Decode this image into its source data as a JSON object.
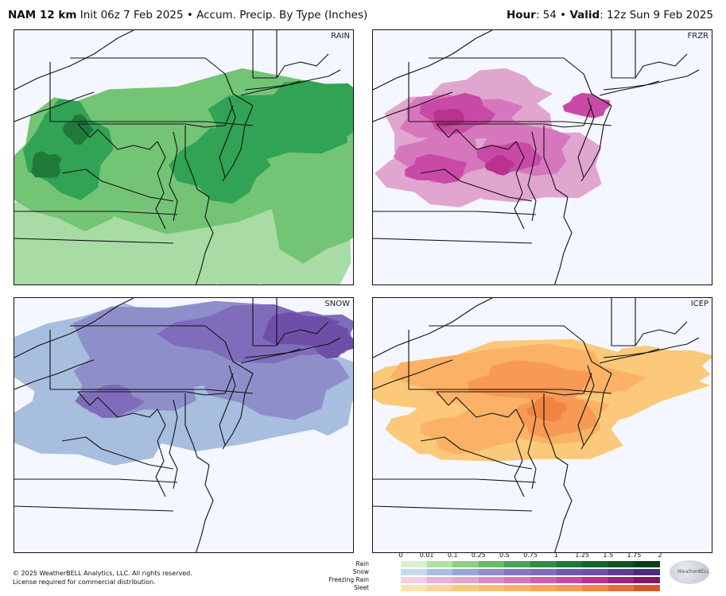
{
  "header": {
    "model": "NAM 12 km",
    "init": "Init 06z 7 Feb 2025",
    "sep": "•",
    "product": "Accum. Precip. By Type (Inches)",
    "hour_label": "Hour",
    "hour_value": ": 54",
    "valid_label": "Valid",
    "valid_value": ": 12z Sun 9 Feb 2025"
  },
  "panels": [
    {
      "label": "RAIN",
      "colors": {
        "light": "#a8dca4",
        "mid": "#74c476",
        "dark": "#31a354",
        "darkest": "#1f7a3a"
      }
    },
    {
      "label": "FRZR",
      "colors": {
        "light": "#e0a6cf",
        "mid": "#d677bd",
        "dark": "#c94aa6",
        "darkest": "#b8328e"
      }
    },
    {
      "label": "SNOW",
      "colors": {
        "light": "#a7bedf",
        "mid": "#8e8fca",
        "dark": "#7f6cba",
        "darkest": "#6e4fa8"
      }
    },
    {
      "label": "ICEP",
      "colors": {
        "light": "#fcc97a",
        "mid": "#fbb266",
        "dark": "#f79a55",
        "darkest": "#f08442"
      }
    }
  ],
  "footer": {
    "copyright": "© 2025 WeatherBELL Analytics, LLC. All rights reserved.",
    "license": "License required for commercial distribution.",
    "logo_text": "WeatherBELL"
  },
  "legend": {
    "ticks": [
      "0",
      "0.01",
      "0.1",
      "0.25",
      "0.5",
      "0.75",
      "1",
      "1.25",
      "1.5",
      "1.75",
      "2"
    ],
    "rows": [
      {
        "label": "Rain",
        "colors": [
          "#d7f0d2",
          "#b2e0a9",
          "#8ccf85",
          "#66bc69",
          "#47a557",
          "#2d8d47",
          "#1f7a3a",
          "#15652f",
          "#0d5226",
          "#06401c"
        ]
      },
      {
        "label": "Snow",
        "colors": [
          "#c6d8ee",
          "#a7bedf",
          "#93a6d4",
          "#8e8fca",
          "#8479c0",
          "#7f6cba",
          "#7258ad",
          "#6e4fa8",
          "#5c3b95",
          "#4a2a80"
        ]
      },
      {
        "label": "Freezing Rain",
        "colors": [
          "#f3cde6",
          "#e8b2d8",
          "#e0a6cf",
          "#d98ac4",
          "#d677bd",
          "#cf5fb1",
          "#c94aa6",
          "#b8328e",
          "#9c2478",
          "#801962"
        ]
      },
      {
        "label": "Sleet",
        "colors": [
          "#fde2b0",
          "#fdd495",
          "#fcc97a",
          "#fbbd70",
          "#fbb266",
          "#f9a45d",
          "#f79a55",
          "#f08442",
          "#e66e35",
          "#d25a2a"
        ]
      }
    ]
  }
}
